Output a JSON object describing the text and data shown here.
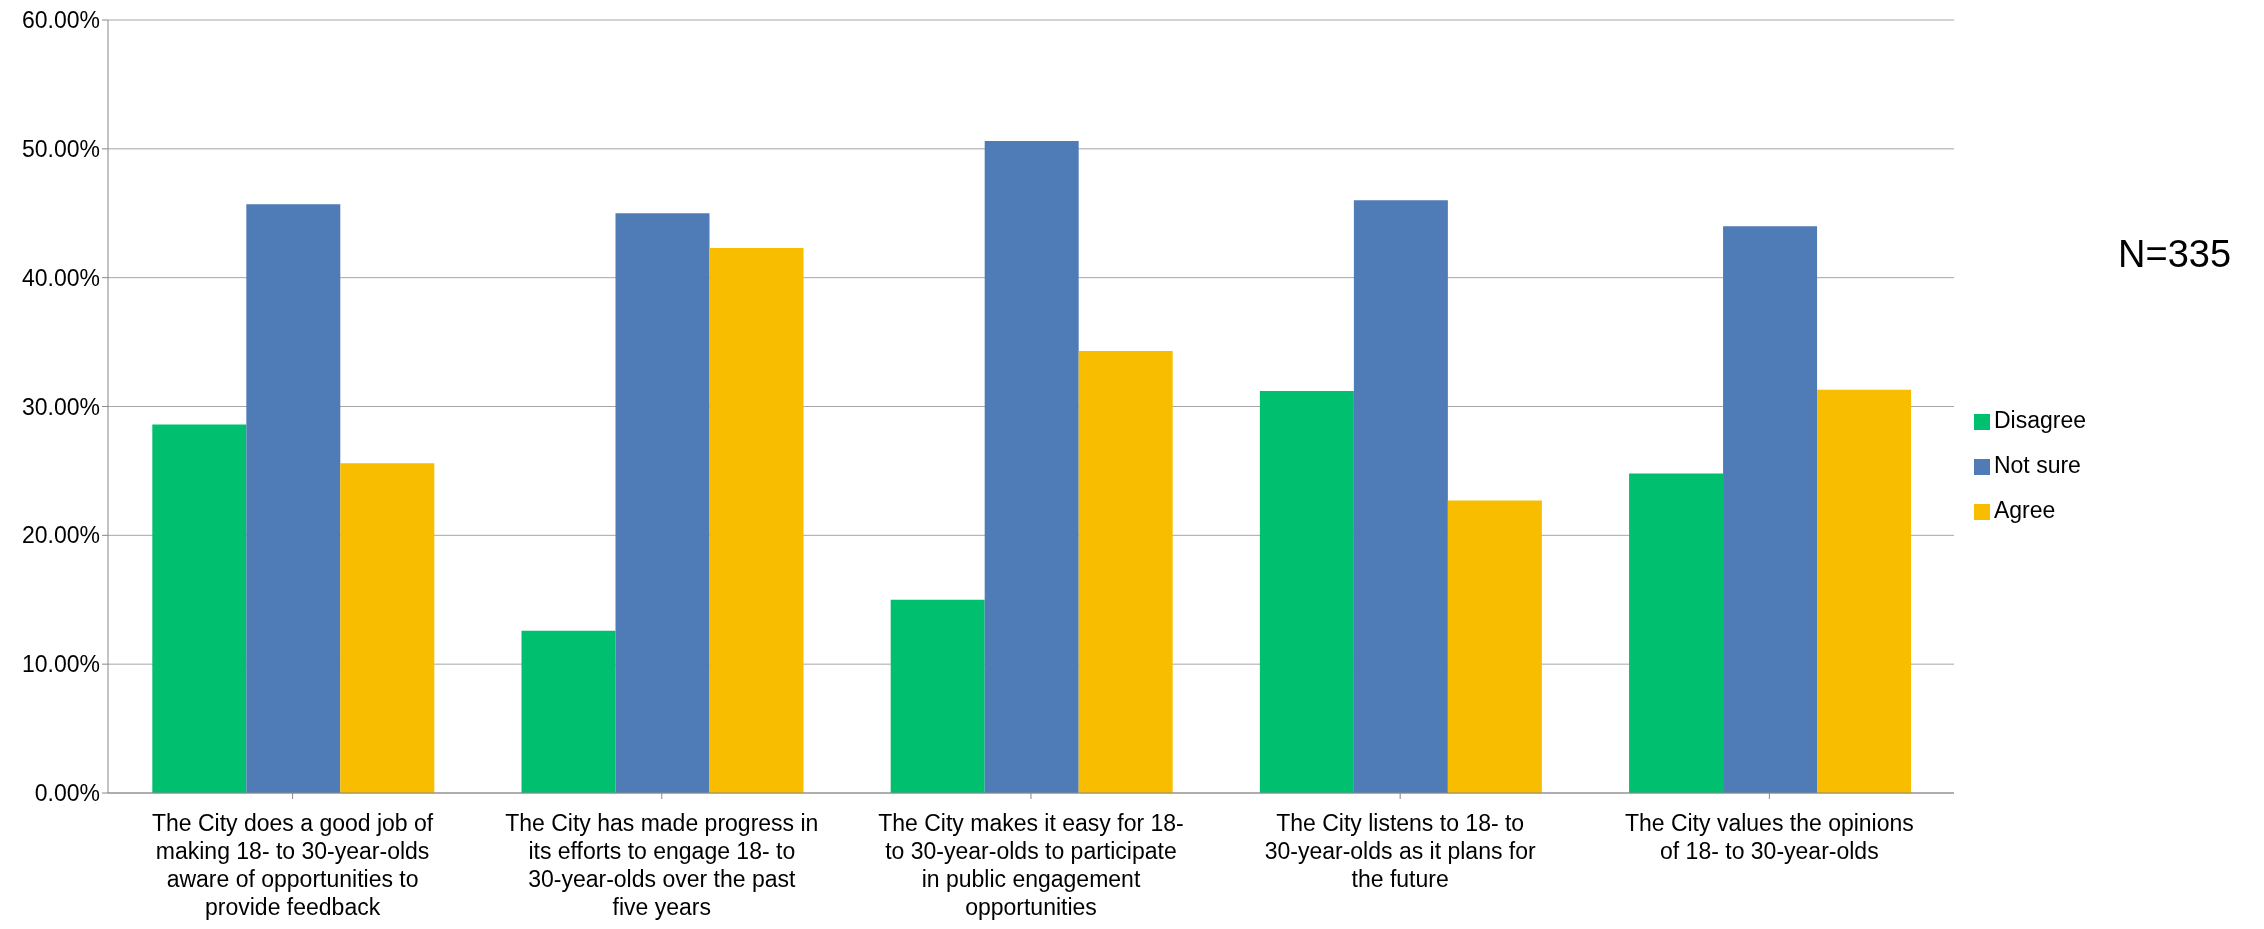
{
  "chart_data": {
    "type": "bar",
    "categories": [
      "The City does a good job of making 18- to 30-year-olds aware of opportunities to provide feedback",
      "The City has made progress in its efforts to engage 18- to 30-year-olds over the past five years",
      "The City makes it easy for 18- to 30-year-olds to participate in public engagement opportunities",
      "The City listens to 18- to 30-year-olds as it plans for the future",
      "The City values the opinions of 18- to 30-year-olds"
    ],
    "series": [
      {
        "name": "Disagree",
        "color": "#00bf6f",
        "values": [
          28.6,
          12.6,
          15.0,
          31.2,
          24.8
        ]
      },
      {
        "name": "Not sure",
        "color": "#4f7bb7",
        "values": [
          45.7,
          45.0,
          50.6,
          46.0,
          44.0
        ]
      },
      {
        "name": "Agree",
        "color": "#f9bd00",
        "values": [
          25.6,
          42.3,
          34.3,
          22.7,
          31.3
        ]
      }
    ],
    "ylim": [
      0,
      60
    ],
    "yticks": [
      {
        "value": 0,
        "label": "0.00%"
      },
      {
        "value": 10,
        "label": "10.00%"
      },
      {
        "value": 20,
        "label": "20.00%"
      },
      {
        "value": 30,
        "label": "30.00%"
      },
      {
        "value": 40,
        "label": "40.00%"
      },
      {
        "value": 50,
        "label": "50.00%"
      },
      {
        "value": 60,
        "label": "60.00%"
      }
    ],
    "grid": "y",
    "legend": "right",
    "annotations": [
      "N=335"
    ]
  }
}
